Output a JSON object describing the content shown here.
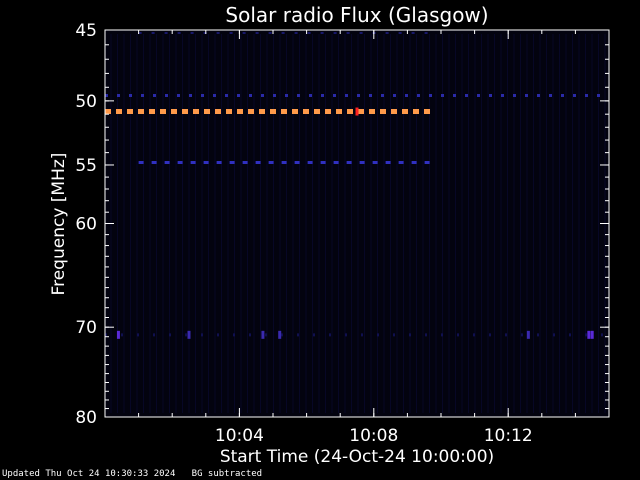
{
  "chart_data": {
    "type": "heatmap",
    "title": "Solar radio Flux (Glasgow)",
    "xlabel": "Start Time (24-Oct-24 10:00:00)",
    "ylabel": "Frequency [MHz]",
    "x_start_minutes": 0,
    "x_end_minutes": 15,
    "x_ticks": [
      {
        "minute": 4,
        "label": "10:04"
      },
      {
        "minute": 8,
        "label": "10:08"
      },
      {
        "minute": 12,
        "label": "10:12"
      }
    ],
    "ylim": [
      45,
      80
    ],
    "y_scale": "log",
    "y_ticks": [
      {
        "value": 45,
        "label": "45"
      },
      {
        "value": 50,
        "label": "50"
      },
      {
        "value": 55,
        "label": "55"
      },
      {
        "value": 60,
        "label": "60"
      },
      {
        "value": 70,
        "label": "70"
      },
      {
        "value": 80,
        "label": "80"
      }
    ],
    "bands": [
      {
        "freq": 50.8,
        "start_minute": 0,
        "end_minute": 9.8,
        "color": "#ff9a4a",
        "intensity": "high",
        "dash": 6,
        "gap": 5,
        "thickness": 5
      },
      {
        "freq": 49.6,
        "start_minute": 0,
        "end_minute": 15,
        "color": "#2a2aa8",
        "intensity": "low",
        "dash": 3,
        "gap": 9,
        "thickness": 3
      },
      {
        "freq": 54.8,
        "start_minute": 1.0,
        "end_minute": 9.8,
        "color": "#3030c0",
        "intensity": "low",
        "dash": 5,
        "gap": 8,
        "thickness": 3
      },
      {
        "freq": 45.2,
        "start_minute": 1.0,
        "end_minute": 9.8,
        "color": "#18186a",
        "intensity": "faint",
        "dash": 3,
        "gap": 10,
        "thickness": 2
      },
      {
        "freq": 70.8,
        "start_minute": 0,
        "end_minute": 15,
        "color": "#101050",
        "intensity": "faint",
        "dash": 2,
        "gap": 14,
        "thickness": 3
      }
    ],
    "spots": [
      {
        "minute": 7.5,
        "freq": 50.8,
        "color": "#ff2020"
      },
      {
        "minute": 0.4,
        "freq": 70.8,
        "color": "#5a2ad8"
      },
      {
        "minute": 2.5,
        "freq": 70.8,
        "color": "#3a2ab0"
      },
      {
        "minute": 4.7,
        "freq": 70.8,
        "color": "#3a2ab0"
      },
      {
        "minute": 5.2,
        "freq": 70.8,
        "color": "#3a2ab0"
      },
      {
        "minute": 12.6,
        "freq": 70.8,
        "color": "#3a2ab0"
      },
      {
        "minute": 14.4,
        "freq": 70.8,
        "color": "#5a2ad8"
      },
      {
        "minute": 14.5,
        "freq": 70.8,
        "color": "#5a2ad8"
      }
    ],
    "background_color": "#03030f",
    "colors": {
      "axis": "#ffffff",
      "text": "#ffffff"
    }
  },
  "footer": {
    "updated": "Updated Thu Oct 24 10:30:33 2024",
    "note": "BG subtracted"
  }
}
